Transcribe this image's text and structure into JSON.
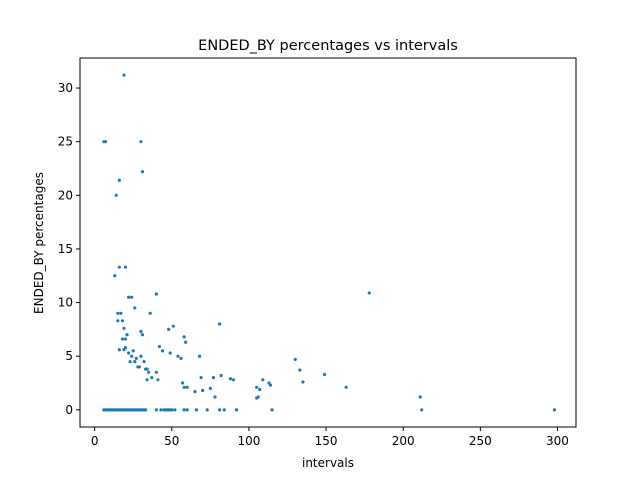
{
  "chart_data": {
    "type": "scatter",
    "title": "ENDED_BY percentages vs intervals",
    "xlabel": "intervals",
    "ylabel": "ENDED_BY percentages",
    "xlim": [
      -9.5,
      312
    ],
    "ylim": [
      -1.6,
      32.8
    ],
    "xticks": [
      0,
      50,
      100,
      150,
      200,
      250,
      300
    ],
    "yticks": [
      0,
      5,
      10,
      15,
      20,
      25,
      30
    ],
    "grid": false,
    "legend": "none",
    "marker_color": "#1f77b4",
    "points": [
      [
        6,
        0
      ],
      [
        7,
        0
      ],
      [
        8,
        0
      ],
      [
        9,
        0
      ],
      [
        10,
        0
      ],
      [
        11,
        0
      ],
      [
        12,
        0
      ],
      [
        13,
        0
      ],
      [
        14,
        0
      ],
      [
        15,
        0
      ],
      [
        16,
        0
      ],
      [
        17,
        0
      ],
      [
        18,
        0
      ],
      [
        19,
        0
      ],
      [
        20,
        0
      ],
      [
        21,
        0
      ],
      [
        22,
        0
      ],
      [
        23,
        0
      ],
      [
        24,
        0
      ],
      [
        25,
        0
      ],
      [
        26,
        0
      ],
      [
        27,
        0
      ],
      [
        28,
        0
      ],
      [
        29,
        0
      ],
      [
        30,
        0
      ],
      [
        31,
        0
      ],
      [
        32,
        0
      ],
      [
        33,
        0
      ],
      [
        40,
        0
      ],
      [
        43,
        0
      ],
      [
        45,
        0
      ],
      [
        46,
        0
      ],
      [
        47,
        0
      ],
      [
        48,
        0
      ],
      [
        49,
        0
      ],
      [
        50,
        0
      ],
      [
        52,
        0
      ],
      [
        58,
        0
      ],
      [
        60,
        0
      ],
      [
        66,
        0
      ],
      [
        73,
        0
      ],
      [
        81,
        0
      ],
      [
        84,
        0
      ],
      [
        92,
        0
      ],
      [
        115,
        0
      ],
      [
        212,
        0
      ],
      [
        298,
        0
      ],
      [
        6,
        25
      ],
      [
        7,
        25
      ],
      [
        14,
        20
      ],
      [
        16,
        21.4
      ],
      [
        19,
        31.2
      ],
      [
        30,
        25
      ],
      [
        31,
        22.2
      ],
      [
        13,
        12.5
      ],
      [
        16,
        13.3
      ],
      [
        20,
        13.3
      ],
      [
        15,
        9
      ],
      [
        17,
        9
      ],
      [
        22,
        10.5
      ],
      [
        24,
        10.5
      ],
      [
        26,
        9.5
      ],
      [
        40,
        10.8
      ],
      [
        36,
        9
      ],
      [
        178,
        10.9
      ],
      [
        15,
        8.3
      ],
      [
        18,
        8.3
      ],
      [
        19,
        7.6
      ],
      [
        18,
        6.6
      ],
      [
        20,
        6.6
      ],
      [
        21,
        7
      ],
      [
        20,
        5.8
      ],
      [
        22,
        5.3
      ],
      [
        24,
        5
      ],
      [
        16,
        5.6
      ],
      [
        19,
        5.6
      ],
      [
        23,
        4.5
      ],
      [
        25,
        5.5
      ],
      [
        26,
        4.5
      ],
      [
        27,
        4.8
      ],
      [
        28,
        4
      ],
      [
        29,
        4
      ],
      [
        30,
        7.3
      ],
      [
        31,
        7
      ],
      [
        30,
        5
      ],
      [
        32,
        4.5
      ],
      [
        33,
        3.8
      ],
      [
        34,
        3.8
      ],
      [
        35,
        3.5
      ],
      [
        34,
        2.8
      ],
      [
        37,
        3
      ],
      [
        40,
        3.5
      ],
      [
        41,
        2.8
      ],
      [
        42,
        5.9
      ],
      [
        44,
        5.5
      ],
      [
        48,
        7.5
      ],
      [
        51,
        7.8
      ],
      [
        49,
        5.3
      ],
      [
        54,
        5
      ],
      [
        56,
        4.8
      ],
      [
        58,
        6.8
      ],
      [
        59,
        6.3
      ],
      [
        57,
        2.5
      ],
      [
        58,
        2.1
      ],
      [
        60,
        2.1
      ],
      [
        65,
        1.7
      ],
      [
        68,
        5
      ],
      [
        69,
        3
      ],
      [
        70,
        1.8
      ],
      [
        75,
        2
      ],
      [
        77,
        3
      ],
      [
        78,
        1.2
      ],
      [
        81,
        8
      ],
      [
        82,
        3.2
      ],
      [
        88,
        2.9
      ],
      [
        90,
        2.8
      ],
      [
        105,
        1.1
      ],
      [
        106,
        1.2
      ],
      [
        107,
        1.9
      ],
      [
        105,
        2.1
      ],
      [
        109,
        2.8
      ],
      [
        113,
        2.5
      ],
      [
        114,
        2.3
      ],
      [
        130,
        4.7
      ],
      [
        133,
        3.7
      ],
      [
        135,
        2.6
      ],
      [
        149,
        3.3
      ],
      [
        163,
        2.1
      ],
      [
        211,
        1.2
      ]
    ]
  }
}
